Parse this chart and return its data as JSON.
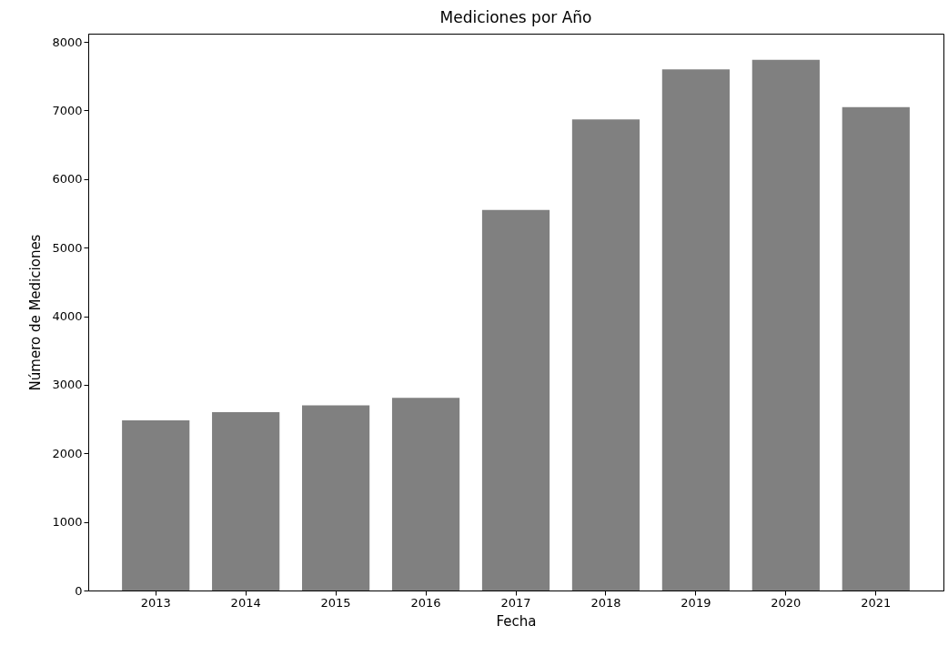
{
  "chart_data": {
    "type": "bar",
    "title": "Mediciones por Año",
    "xlabel": "Fecha",
    "ylabel": "Número de Mediciones",
    "categories": [
      "2013",
      "2014",
      "2015",
      "2016",
      "2017",
      "2018",
      "2019",
      "2020",
      "2021"
    ],
    "values": [
      2480,
      2600,
      2700,
      2810,
      5550,
      6870,
      7600,
      7740,
      7050
    ],
    "color": "#808080",
    "ylim": [
      0,
      8120
    ],
    "yticks": [
      0,
      1000,
      2000,
      3000,
      4000,
      5000,
      6000,
      7000,
      8000
    ],
    "grid": false
  }
}
